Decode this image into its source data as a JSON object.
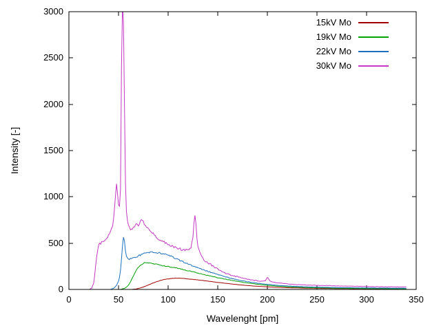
{
  "chart_data": {
    "type": "line",
    "title": "",
    "xlabel": "Wavelenght [pm]",
    "ylabel": "Intensity [-]",
    "xlim": [
      0,
      350
    ],
    "ylim": [
      0,
      3000
    ],
    "x_ticks": [
      0,
      50,
      100,
      150,
      200,
      250,
      300,
      350
    ],
    "y_ticks": [
      0,
      500,
      1000,
      1500,
      2000,
      2500,
      3000
    ],
    "grid": false,
    "legend_position": "top-right",
    "series": [
      {
        "name": "15kV Mo",
        "color": "#a00000",
        "noise": 4,
        "points": [
          [
            64,
            1
          ],
          [
            68,
            6
          ],
          [
            72,
            16
          ],
          [
            76,
            30
          ],
          [
            80,
            48
          ],
          [
            84,
            66
          ],
          [
            88,
            82
          ],
          [
            92,
            96
          ],
          [
            96,
            107
          ],
          [
            100,
            114
          ],
          [
            104,
            119
          ],
          [
            108,
            122
          ],
          [
            112,
            121
          ],
          [
            116,
            118
          ],
          [
            120,
            114
          ],
          [
            124,
            110
          ],
          [
            128,
            105
          ],
          [
            132,
            100
          ],
          [
            136,
            95
          ],
          [
            140,
            90
          ],
          [
            145,
            83
          ],
          [
            150,
            76
          ],
          [
            155,
            70
          ],
          [
            160,
            64
          ],
          [
            165,
            58
          ],
          [
            170,
            52
          ],
          [
            175,
            47
          ],
          [
            180,
            42
          ],
          [
            185,
            38
          ],
          [
            190,
            34
          ],
          [
            195,
            31
          ],
          [
            200,
            28
          ],
          [
            205,
            25
          ],
          [
            210,
            23
          ],
          [
            215,
            21
          ],
          [
            220,
            19
          ],
          [
            225,
            17
          ],
          [
            230,
            16
          ],
          [
            235,
            15
          ],
          [
            240,
            14
          ],
          [
            245,
            13
          ],
          [
            250,
            12
          ],
          [
            255,
            11
          ],
          [
            260,
            11
          ],
          [
            265,
            10
          ],
          [
            270,
            10
          ],
          [
            275,
            9
          ],
          [
            280,
            9
          ],
          [
            285,
            8
          ],
          [
            290,
            8
          ],
          [
            295,
            8
          ],
          [
            300,
            7
          ],
          [
            305,
            7
          ],
          [
            310,
            7
          ],
          [
            315,
            6
          ],
          [
            320,
            6
          ],
          [
            325,
            6
          ],
          [
            330,
            6
          ],
          [
            335,
            5
          ],
          [
            340,
            5
          ]
        ]
      },
      {
        "name": "19kV Mo",
        "color": "#00a000",
        "noise": 6,
        "points": [
          [
            52,
            2
          ],
          [
            54,
            6
          ],
          [
            56,
            12
          ],
          [
            58,
            25
          ],
          [
            60,
            45
          ],
          [
            62,
            80
          ],
          [
            64,
            125
          ],
          [
            66,
            170
          ],
          [
            68,
            210
          ],
          [
            70,
            240
          ],
          [
            72,
            262
          ],
          [
            74,
            277
          ],
          [
            76,
            287
          ],
          [
            78,
            290
          ],
          [
            80,
            287
          ],
          [
            83,
            281
          ],
          [
            86,
            275
          ],
          [
            90,
            267
          ],
          [
            94,
            259
          ],
          [
            98,
            251
          ],
          [
            102,
            243
          ],
          [
            106,
            235
          ],
          [
            110,
            227
          ],
          [
            114,
            217
          ],
          [
            118,
            207
          ],
          [
            122,
            197
          ],
          [
            126,
            187
          ],
          [
            130,
            177
          ],
          [
            134,
            167
          ],
          [
            138,
            157
          ],
          [
            142,
            147
          ],
          [
            146,
            137
          ],
          [
            150,
            127
          ],
          [
            155,
            116
          ],
          [
            160,
            106
          ],
          [
            165,
            96
          ],
          [
            170,
            87
          ],
          [
            175,
            78
          ],
          [
            180,
            70
          ],
          [
            185,
            63
          ],
          [
            190,
            56
          ],
          [
            195,
            50
          ],
          [
            200,
            45
          ],
          [
            205,
            40
          ],
          [
            210,
            36
          ],
          [
            215,
            32
          ],
          [
            220,
            29
          ],
          [
            225,
            26
          ],
          [
            230,
            24
          ],
          [
            235,
            22
          ],
          [
            240,
            20
          ],
          [
            245,
            18
          ],
          [
            250,
            17
          ],
          [
            255,
            16
          ],
          [
            260,
            15
          ],
          [
            265,
            14
          ],
          [
            270,
            13
          ],
          [
            275,
            12
          ],
          [
            280,
            12
          ],
          [
            285,
            11
          ],
          [
            290,
            11
          ],
          [
            295,
            10
          ],
          [
            300,
            10
          ],
          [
            305,
            9
          ],
          [
            310,
            9
          ],
          [
            315,
            9
          ],
          [
            320,
            8
          ],
          [
            325,
            8
          ],
          [
            330,
            8
          ],
          [
            335,
            7
          ],
          [
            340,
            7
          ]
        ]
      },
      {
        "name": "22kV Mo",
        "color": "#1a6fbd",
        "noise": 8,
        "points": [
          [
            42,
            2
          ],
          [
            44,
            8
          ],
          [
            46,
            20
          ],
          [
            48,
            45
          ],
          [
            50,
            90
          ],
          [
            51,
            130
          ],
          [
            52,
            210
          ],
          [
            53,
            330
          ],
          [
            54,
            470
          ],
          [
            55,
            565
          ],
          [
            56,
            520
          ],
          [
            57,
            420
          ],
          [
            58,
            360
          ],
          [
            59,
            340
          ],
          [
            60,
            332
          ],
          [
            62,
            330
          ],
          [
            64,
            336
          ],
          [
            66,
            344
          ],
          [
            68,
            352
          ],
          [
            70,
            362
          ],
          [
            73,
            376
          ],
          [
            76,
            388
          ],
          [
            80,
            397
          ],
          [
            84,
            403
          ],
          [
            88,
            400
          ],
          [
            92,
            392
          ],
          [
            96,
            382
          ],
          [
            100,
            371
          ],
          [
            104,
            352
          ],
          [
            108,
            333
          ],
          [
            112,
            313
          ],
          [
            116,
            293
          ],
          [
            120,
            273
          ],
          [
            124,
            256
          ],
          [
            128,
            240
          ],
          [
            132,
            225
          ],
          [
            136,
            210
          ],
          [
            140,
            196
          ],
          [
            145,
            178
          ],
          [
            150,
            161
          ],
          [
            155,
            145
          ],
          [
            160,
            130
          ],
          [
            165,
            116
          ],
          [
            170,
            104
          ],
          [
            175,
            94
          ],
          [
            180,
            84
          ],
          [
            185,
            76
          ],
          [
            190,
            68
          ],
          [
            195,
            61
          ],
          [
            200,
            55
          ],
          [
            205,
            50
          ],
          [
            210,
            45
          ],
          [
            215,
            41
          ],
          [
            220,
            38
          ],
          [
            225,
            35
          ],
          [
            230,
            32
          ],
          [
            235,
            30
          ],
          [
            240,
            28
          ],
          [
            245,
            26
          ],
          [
            250,
            25
          ],
          [
            255,
            23
          ],
          [
            260,
            22
          ],
          [
            265,
            21
          ],
          [
            270,
            20
          ],
          [
            275,
            19
          ],
          [
            280,
            19
          ],
          [
            285,
            18
          ],
          [
            290,
            17
          ],
          [
            295,
            17
          ],
          [
            300,
            16
          ],
          [
            305,
            16
          ],
          [
            310,
            15
          ],
          [
            315,
            15
          ],
          [
            320,
            14
          ],
          [
            325,
            14
          ],
          [
            330,
            13
          ],
          [
            335,
            13
          ],
          [
            340,
            13
          ]
        ]
      },
      {
        "name": "30kV Mo",
        "color": "#c437c4",
        "noise": 12,
        "points": [
          [
            21,
            2
          ],
          [
            23,
            15
          ],
          [
            25,
            70
          ],
          [
            26,
            150
          ],
          [
            27,
            260
          ],
          [
            28,
            360
          ],
          [
            29,
            430
          ],
          [
            30,
            470
          ],
          [
            31,
            490
          ],
          [
            32,
            500
          ],
          [
            34,
            515
          ],
          [
            36,
            535
          ],
          [
            38,
            555
          ],
          [
            40,
            585
          ],
          [
            42,
            625
          ],
          [
            44,
            690
          ],
          [
            45,
            760
          ],
          [
            46,
            870
          ],
          [
            47,
            1020
          ],
          [
            48,
            1140
          ],
          [
            49,
            1040
          ],
          [
            50,
            920
          ],
          [
            51,
            905
          ],
          [
            52,
            1080
          ],
          [
            53,
            2400
          ],
          [
            54,
            3080
          ],
          [
            55,
            2880
          ],
          [
            56,
            2000
          ],
          [
            57,
            1150
          ],
          [
            58,
            840
          ],
          [
            59,
            740
          ],
          [
            60,
            690
          ],
          [
            62,
            655
          ],
          [
            64,
            655
          ],
          [
            66,
            685
          ],
          [
            68,
            710
          ],
          [
            70,
            695
          ],
          [
            72,
            730
          ],
          [
            74,
            755
          ],
          [
            76,
            705
          ],
          [
            78,
            680
          ],
          [
            80,
            655
          ],
          [
            82,
            625
          ],
          [
            85,
            600
          ],
          [
            88,
            565
          ],
          [
            91,
            540
          ],
          [
            94,
            522
          ],
          [
            97,
            505
          ],
          [
            100,
            488
          ],
          [
            104,
            466
          ],
          [
            108,
            452
          ],
          [
            112,
            437
          ],
          [
            116,
            424
          ],
          [
            120,
            430
          ],
          [
            123,
            452
          ],
          [
            125,
            560
          ],
          [
            126,
            720
          ],
          [
            127,
            790
          ],
          [
            128,
            705
          ],
          [
            129,
            560
          ],
          [
            130,
            462
          ],
          [
            132,
            390
          ],
          [
            134,
            345
          ],
          [
            136,
            320
          ],
          [
            140,
            292
          ],
          [
            144,
            263
          ],
          [
            148,
            234
          ],
          [
            152,
            206
          ],
          [
            156,
            184
          ],
          [
            160,
            167
          ],
          [
            165,
            150
          ],
          [
            170,
            136
          ],
          [
            175,
            122
          ],
          [
            180,
            111
          ],
          [
            185,
            101
          ],
          [
            190,
            94
          ],
          [
            195,
            89
          ],
          [
            198,
            92
          ],
          [
            200,
            135
          ],
          [
            202,
            96
          ],
          [
            205,
            80
          ],
          [
            210,
            71
          ],
          [
            215,
            65
          ],
          [
            220,
            60
          ],
          [
            225,
            56
          ],
          [
            230,
            52
          ],
          [
            235,
            50
          ],
          [
            240,
            47
          ],
          [
            245,
            45
          ],
          [
            250,
            44
          ],
          [
            255,
            42
          ],
          [
            260,
            41
          ],
          [
            265,
            40
          ],
          [
            270,
            38
          ],
          [
            275,
            37
          ],
          [
            280,
            36
          ],
          [
            285,
            35
          ],
          [
            290,
            34
          ],
          [
            295,
            33
          ],
          [
            300,
            32
          ],
          [
            305,
            31
          ],
          [
            310,
            30
          ],
          [
            315,
            30
          ],
          [
            320,
            29
          ],
          [
            325,
            29
          ],
          [
            330,
            28
          ],
          [
            335,
            27
          ],
          [
            340,
            27
          ]
        ]
      }
    ]
  }
}
